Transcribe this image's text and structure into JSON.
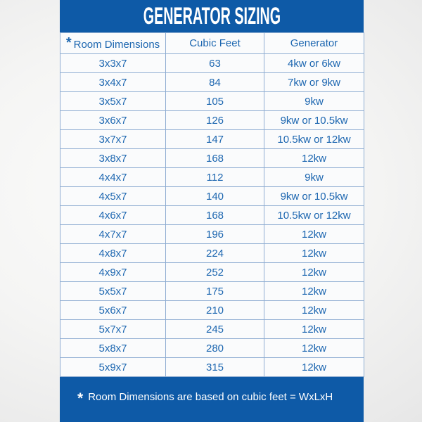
{
  "colors": {
    "panel-blue": "#0e5aa7",
    "table-text-blue": "#1c66b0",
    "table-border-blue": "#8fadd2",
    "table-row-bg": "#fafbfc",
    "title-text": "#ffffff"
  },
  "chart_data": {
    "type": "table",
    "title": "GENERATOR SIZING",
    "header_marker": "*",
    "columns": [
      "Room Dimensions",
      "Cubic Feet",
      "Generator"
    ],
    "rows": [
      [
        "3x3x7",
        "63",
        "4kw or 6kw"
      ],
      [
        "3x4x7",
        "84",
        "7kw or 9kw"
      ],
      [
        "3x5x7",
        "105",
        "9kw"
      ],
      [
        "3x6x7",
        "126",
        "9kw or 10.5kw"
      ],
      [
        "3x7x7",
        "147",
        "10.5kw or 12kw"
      ],
      [
        "3x8x7",
        "168",
        "12kw"
      ],
      [
        "4x4x7",
        "112",
        "9kw"
      ],
      [
        "4x5x7",
        "140",
        "9kw or 10.5kw"
      ],
      [
        "4x6x7",
        "168",
        "10.5kw or 12kw"
      ],
      [
        "4x7x7",
        "196",
        "12kw"
      ],
      [
        "4x8x7",
        "224",
        "12kw"
      ],
      [
        "4x9x7",
        "252",
        "12kw"
      ],
      [
        "5x5x7",
        "175",
        "12kw"
      ],
      [
        "5x6x7",
        "210",
        "12kw"
      ],
      [
        "5x7x7",
        "245",
        "12kw"
      ],
      [
        "5x8x7",
        "280",
        "12kw"
      ],
      [
        "5x9x7",
        "315",
        "12kw"
      ]
    ],
    "footnote_marker": "*",
    "footnote": "Room Dimensions are based on cubic feet = WxLxH"
  }
}
